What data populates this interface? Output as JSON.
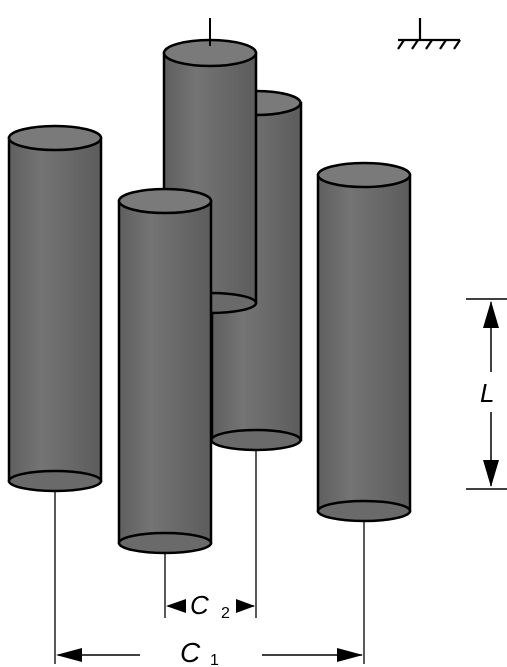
{
  "labels": {
    "length": "L",
    "spacing_2": "C",
    "spacing_2_subscript": "2",
    "spacing_1": "C",
    "spacing_1_subscript": "1"
  },
  "colors": {
    "cylinder_body": "#6f6f6f",
    "cylinder_edge": "#000000",
    "cylinder_top": "#7a7a7a",
    "line": "#000000",
    "background": "#ffffff"
  },
  "icons": {
    "ground_symbol": "ground-icon",
    "feed_terminal": "terminal-icon"
  }
}
